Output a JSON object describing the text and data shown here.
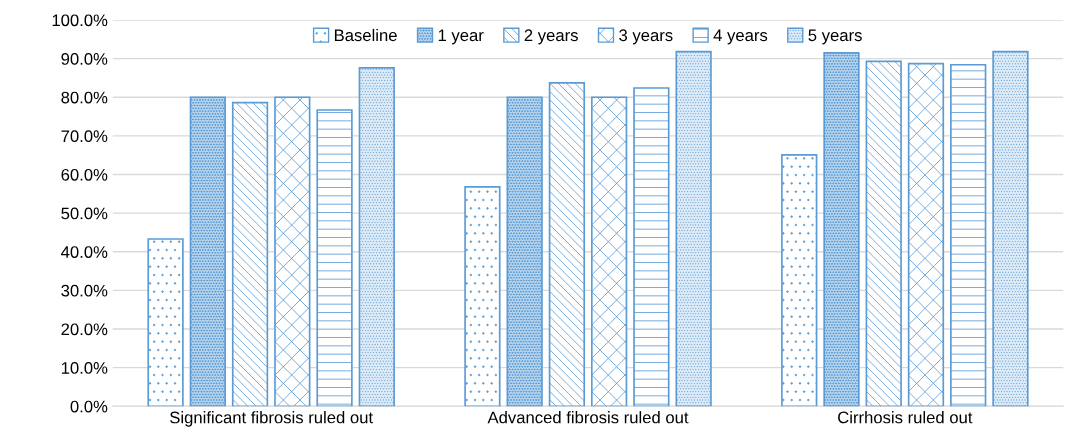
{
  "chart_data": {
    "type": "bar",
    "categories": [
      "Significant fibrosis ruled out",
      "Advanced fibrosis ruled out",
      "Cirrhosis ruled out"
    ],
    "series": [
      {
        "name": "Baseline",
        "color": "#5b9bd5",
        "values": [
          43.3,
          56.8,
          65.1
        ]
      },
      {
        "name": "1 year",
        "color": "#5b9bd5",
        "values": [
          80.0,
          80.0,
          91.5
        ]
      },
      {
        "name": "2 years",
        "color": "#5b9bd5",
        "values": [
          78.6,
          83.7,
          89.3
        ]
      },
      {
        "name": "3 years",
        "color": "#5b9bd5",
        "values": [
          80.0,
          80.0,
          88.7
        ]
      },
      {
        "name": "4 years",
        "color": "#5b9bd5",
        "values": [
          76.7,
          82.4,
          88.4
        ]
      },
      {
        "name": "5 years",
        "color": "#5b9bd5",
        "values": [
          87.6,
          91.8,
          91.8
        ]
      }
    ],
    "ylim": [
      0,
      100
    ],
    "yticks": [
      {
        "value": 0,
        "label": "0.0%"
      },
      {
        "value": 10,
        "label": "10.0%"
      },
      {
        "value": 20,
        "label": "20.0%"
      },
      {
        "value": 30,
        "label": "30.0%"
      },
      {
        "value": 40,
        "label": "40.0%"
      },
      {
        "value": 50,
        "label": "50.0%"
      },
      {
        "value": 60,
        "label": "60.0%"
      },
      {
        "value": 70,
        "label": "70.0%"
      },
      {
        "value": 80,
        "label": "80.0%"
      },
      {
        "value": 90,
        "label": "90.0%"
      },
      {
        "value": 100,
        "label": "100.0%"
      }
    ],
    "grid": "y",
    "legend": "top"
  }
}
